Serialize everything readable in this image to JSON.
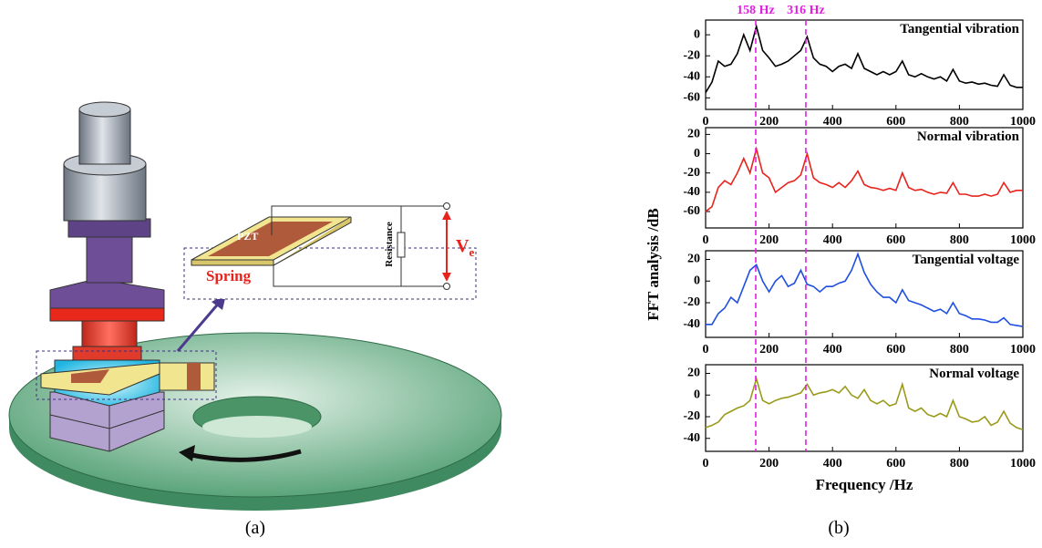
{
  "diagram": {
    "pzt": "PZT",
    "spring": "Spring",
    "resistance": "Resistance",
    "voltage": "V",
    "voltage_subscript": "e"
  },
  "captions": [
    "(a)",
    "(b)"
  ],
  "chart_data": [
    {
      "type": "line",
      "ylabel": "FFT analysis /dB",
      "annotations": [
        {
          "x": 158,
          "label": "158 Hz"
        },
        {
          "x": 316,
          "label": "316 Hz"
        }
      ],
      "x": [
        0,
        20,
        40,
        60,
        80,
        100,
        120,
        140,
        160,
        180,
        200,
        220,
        240,
        260,
        280,
        300,
        320,
        340,
        360,
        380,
        400,
        420,
        440,
        460,
        480,
        500,
        520,
        540,
        560,
        580,
        600,
        620,
        640,
        660,
        680,
        700,
        720,
        740,
        760,
        780,
        800,
        820,
        840,
        860,
        880,
        900,
        920,
        940,
        960,
        980,
        1000
      ],
      "series": [
        {
          "name": "Tangential vibration",
          "color": "#000000",
          "values": [
            -55,
            -45,
            -25,
            -30,
            -28,
            -18,
            0,
            -15,
            8,
            -15,
            -22,
            -30,
            -28,
            -25,
            -20,
            -15,
            -2,
            -22,
            -28,
            -30,
            -35,
            -30,
            -28,
            -32,
            -18,
            -32,
            -35,
            -38,
            -35,
            -38,
            -35,
            -25,
            -38,
            -40,
            -37,
            -40,
            -42,
            -40,
            -44,
            -33,
            -44,
            -46,
            -45,
            -47,
            -46,
            -48,
            -49,
            -38,
            -48,
            -50,
            -50
          ]
        }
      ],
      "xlim": [
        0,
        1000
      ],
      "xticks": [
        0,
        200,
        400,
        600,
        800,
        1000
      ],
      "ylim": [
        -71,
        14
      ],
      "yticks": [
        -60,
        -40,
        -20,
        0
      ]
    },
    {
      "type": "line",
      "x": [
        0,
        20,
        40,
        60,
        80,
        100,
        120,
        140,
        160,
        180,
        200,
        220,
        240,
        260,
        280,
        300,
        320,
        340,
        360,
        380,
        400,
        420,
        440,
        460,
        480,
        500,
        520,
        540,
        560,
        580,
        600,
        620,
        640,
        660,
        680,
        700,
        720,
        740,
        760,
        780,
        800,
        820,
        840,
        860,
        880,
        900,
        920,
        940,
        960,
        980,
        1000
      ],
      "series": [
        {
          "name": "Normal vibration",
          "color": "#e8231c",
          "values": [
            -60,
            -55,
            -35,
            -28,
            -32,
            -20,
            -5,
            -20,
            5,
            -20,
            -25,
            -40,
            -35,
            -30,
            -28,
            -22,
            0,
            -25,
            -30,
            -32,
            -35,
            -30,
            -35,
            -28,
            -18,
            -32,
            -35,
            -36,
            -38,
            -36,
            -38,
            -20,
            -35,
            -38,
            -37,
            -40,
            -42,
            -40,
            -41,
            -30,
            -42,
            -42,
            -44,
            -44,
            -42,
            -44,
            -42,
            -30,
            -40,
            -38,
            -38
          ]
        }
      ],
      "xlim": [
        0,
        1000
      ],
      "xticks": [
        0,
        200,
        400,
        600,
        800,
        1000
      ],
      "ylim": [
        -77,
        27
      ],
      "yticks": [
        -60,
        -40,
        -20,
        0,
        20
      ]
    },
    {
      "type": "line",
      "x": [
        0,
        20,
        40,
        60,
        80,
        100,
        120,
        140,
        160,
        180,
        200,
        220,
        240,
        260,
        280,
        300,
        320,
        340,
        360,
        380,
        400,
        420,
        440,
        460,
        480,
        500,
        520,
        540,
        560,
        580,
        600,
        620,
        640,
        660,
        680,
        700,
        720,
        740,
        760,
        780,
        800,
        820,
        840,
        860,
        880,
        900,
        920,
        940,
        960,
        980,
        1000
      ],
      "series": [
        {
          "name": "Tangential voltage",
          "color": "#1f4fe0",
          "values": [
            -40,
            -40,
            -30,
            -25,
            -15,
            -20,
            -5,
            10,
            15,
            0,
            -10,
            0,
            5,
            -5,
            -2,
            10,
            -3,
            -5,
            -10,
            -5,
            -5,
            -2,
            0,
            10,
            25,
            8,
            -3,
            -10,
            -15,
            -15,
            -20,
            -8,
            -18,
            -20,
            -22,
            -25,
            -28,
            -26,
            -30,
            -20,
            -30,
            -32,
            -35,
            -35,
            -36,
            -38,
            -38,
            -34,
            -40,
            -41,
            -42
          ]
        }
      ],
      "xlim": [
        0,
        1000
      ],
      "xticks": [
        0,
        200,
        400,
        600,
        800,
        1000
      ],
      "ylim": [
        -52,
        28
      ],
      "yticks": [
        -40,
        -20,
        0,
        20
      ]
    },
    {
      "type": "line",
      "xlabel": "Frequency /Hz",
      "x": [
        0,
        20,
        40,
        60,
        80,
        100,
        120,
        140,
        160,
        180,
        200,
        220,
        240,
        260,
        280,
        300,
        320,
        340,
        360,
        380,
        400,
        420,
        440,
        460,
        480,
        500,
        520,
        540,
        560,
        580,
        600,
        620,
        640,
        660,
        680,
        700,
        720,
        740,
        760,
        780,
        800,
        820,
        840,
        860,
        880,
        900,
        920,
        940,
        960,
        980,
        1000
      ],
      "series": [
        {
          "name": "Normal voltage",
          "color": "#9a9a1a",
          "values": [
            -30,
            -28,
            -25,
            -18,
            -15,
            -12,
            -10,
            -5,
            15,
            -5,
            -8,
            -5,
            -3,
            -2,
            0,
            2,
            10,
            0,
            2,
            3,
            5,
            2,
            8,
            0,
            -3,
            5,
            -5,
            -8,
            -5,
            -10,
            -8,
            10,
            -12,
            -15,
            -12,
            -18,
            -20,
            -17,
            -20,
            -5,
            -20,
            -22,
            -25,
            -24,
            -20,
            -28,
            -25,
            -15,
            -26,
            -30,
            -32
          ]
        }
      ],
      "xlim": [
        0,
        1000
      ],
      "xticks": [
        0,
        200,
        400,
        600,
        800,
        1000
      ],
      "ylim": [
        -52,
        28
      ],
      "yticks": [
        -40,
        -20,
        0,
        20
      ]
    }
  ]
}
